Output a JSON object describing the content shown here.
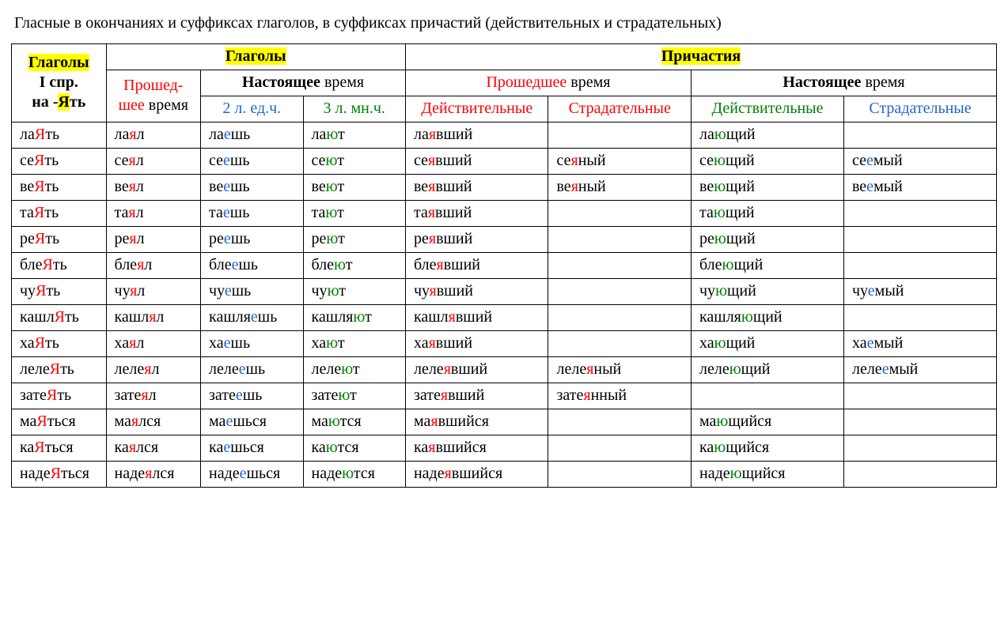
{
  "title": "Гласные в окончаниях и суффиксах глаголов, в суффиксах причастий (действительных и страдательных)",
  "headers": {
    "col0_l1": "Глаголы",
    "col0_l2": "I спр.",
    "col0_l3_pre": "на -",
    "col0_l3_hl": "Я",
    "col0_l3_post": "ть",
    "verbs_group": "Глаголы",
    "participles_group": "Причастия",
    "past_tense_l1": "Прошед-",
    "past_tense_l2": "шее",
    "past_tense_l2b": " время",
    "present_tense_b": "Настоящее",
    "present_tense_n": " время",
    "p2sg": "2 л. ед.ч.",
    "p3pl": "3 л. мн.ч.",
    "past_b": "Прошедшее",
    "past_n": " время",
    "active": "Действительные",
    "passive": "Страдательные"
  },
  "colors": {
    "highlight_bg": "#ffff00",
    "red": "#ff0000",
    "green": "#008000",
    "blue": "#1f65cc"
  },
  "rows": [
    {
      "c0": [
        [
          "ла",
          ""
        ],
        [
          "Я",
          "r"
        ],
        [
          "ть",
          ""
        ]
      ],
      "c1": [
        [
          "ла",
          ""
        ],
        [
          "я",
          "r"
        ],
        [
          "л",
          ""
        ]
      ],
      "c2": [
        [
          "ла",
          ""
        ],
        [
          "е",
          "b"
        ],
        [
          "шь",
          ""
        ]
      ],
      "c3": [
        [
          "ла",
          ""
        ],
        [
          "ю",
          "g"
        ],
        [
          "т",
          ""
        ]
      ],
      "c4": [
        [
          "ла",
          ""
        ],
        [
          "я",
          "r"
        ],
        [
          "вший",
          ""
        ]
      ],
      "c5": [],
      "c6": [
        [
          "ла",
          ""
        ],
        [
          "ю",
          "g"
        ],
        [
          "щий",
          ""
        ]
      ],
      "c7": []
    },
    {
      "c0": [
        [
          "се",
          ""
        ],
        [
          "Я",
          "r"
        ],
        [
          "ть",
          ""
        ]
      ],
      "c1": [
        [
          "се",
          ""
        ],
        [
          "я",
          "r"
        ],
        [
          "л",
          ""
        ]
      ],
      "c2": [
        [
          "се",
          ""
        ],
        [
          "е",
          "b"
        ],
        [
          "шь",
          ""
        ]
      ],
      "c3": [
        [
          "се",
          ""
        ],
        [
          "ю",
          "g"
        ],
        [
          "т",
          ""
        ]
      ],
      "c4": [
        [
          "се",
          ""
        ],
        [
          "я",
          "r"
        ],
        [
          "вший",
          ""
        ]
      ],
      "c5": [
        [
          "се",
          ""
        ],
        [
          "я",
          "r"
        ],
        [
          "ный",
          ""
        ]
      ],
      "c6": [
        [
          "се",
          ""
        ],
        [
          "ю",
          "g"
        ],
        [
          "щий",
          ""
        ]
      ],
      "c7": [
        [
          "се",
          ""
        ],
        [
          "е",
          "b"
        ],
        [
          "мый",
          ""
        ]
      ]
    },
    {
      "c0": [
        [
          "ве",
          ""
        ],
        [
          "Я",
          "r"
        ],
        [
          "ть",
          ""
        ]
      ],
      "c1": [
        [
          "ве",
          ""
        ],
        [
          "я",
          "r"
        ],
        [
          "л",
          ""
        ]
      ],
      "c2": [
        [
          "ве",
          ""
        ],
        [
          "е",
          "b"
        ],
        [
          "шь",
          ""
        ]
      ],
      "c3": [
        [
          "ве",
          ""
        ],
        [
          "ю",
          "g"
        ],
        [
          "т",
          ""
        ]
      ],
      "c4": [
        [
          "ве",
          ""
        ],
        [
          "я",
          "r"
        ],
        [
          "вший",
          ""
        ]
      ],
      "c5": [
        [
          "ве",
          ""
        ],
        [
          "я",
          "r"
        ],
        [
          "ный",
          ""
        ]
      ],
      "c6": [
        [
          "ве",
          ""
        ],
        [
          "ю",
          "g"
        ],
        [
          "щий",
          ""
        ]
      ],
      "c7": [
        [
          "ве",
          ""
        ],
        [
          "е",
          "b"
        ],
        [
          "мый",
          ""
        ]
      ]
    },
    {
      "c0": [
        [
          "та",
          ""
        ],
        [
          "Я",
          "r"
        ],
        [
          "ть",
          ""
        ]
      ],
      "c1": [
        [
          "та",
          ""
        ],
        [
          "я",
          "r"
        ],
        [
          "л",
          ""
        ]
      ],
      "c2": [
        [
          "та",
          ""
        ],
        [
          "е",
          "b"
        ],
        [
          "шь",
          ""
        ]
      ],
      "c3": [
        [
          "та",
          ""
        ],
        [
          "ю",
          "g"
        ],
        [
          "т",
          ""
        ]
      ],
      "c4": [
        [
          "та",
          ""
        ],
        [
          "я",
          "r"
        ],
        [
          "вший",
          ""
        ]
      ],
      "c5": [],
      "c6": [
        [
          "та",
          ""
        ],
        [
          "ю",
          "g"
        ],
        [
          "щий",
          ""
        ]
      ],
      "c7": []
    },
    {
      "c0": [
        [
          "ре",
          ""
        ],
        [
          "Я",
          "r"
        ],
        [
          "ть",
          ""
        ]
      ],
      "c1": [
        [
          "ре",
          ""
        ],
        [
          "я",
          "r"
        ],
        [
          "л",
          ""
        ]
      ],
      "c2": [
        [
          "ре",
          ""
        ],
        [
          "е",
          "b"
        ],
        [
          "шь",
          ""
        ]
      ],
      "c3": [
        [
          "ре",
          ""
        ],
        [
          "ю",
          "g"
        ],
        [
          "т",
          ""
        ]
      ],
      "c4": [
        [
          "ре",
          ""
        ],
        [
          "я",
          "r"
        ],
        [
          "вший",
          ""
        ]
      ],
      "c5": [],
      "c6": [
        [
          "ре",
          ""
        ],
        [
          "ю",
          "g"
        ],
        [
          "щий",
          ""
        ]
      ],
      "c7": []
    },
    {
      "c0": [
        [
          "бле",
          ""
        ],
        [
          "Я",
          "r"
        ],
        [
          "ть",
          ""
        ]
      ],
      "c1": [
        [
          "бле",
          ""
        ],
        [
          "я",
          "r"
        ],
        [
          "л",
          ""
        ]
      ],
      "c2": [
        [
          "бле",
          ""
        ],
        [
          "е",
          "b"
        ],
        [
          "шь",
          ""
        ]
      ],
      "c3": [
        [
          "бле",
          ""
        ],
        [
          "ю",
          "g"
        ],
        [
          "т",
          ""
        ]
      ],
      "c4": [
        [
          "бле",
          ""
        ],
        [
          "я",
          "r"
        ],
        [
          "вший",
          ""
        ]
      ],
      "c5": [],
      "c6": [
        [
          "бле",
          ""
        ],
        [
          "ю",
          "g"
        ],
        [
          "щий",
          ""
        ]
      ],
      "c7": []
    },
    {
      "c0": [
        [
          "чу",
          ""
        ],
        [
          "Я",
          "r"
        ],
        [
          "ть",
          ""
        ]
      ],
      "c1": [
        [
          "чу",
          ""
        ],
        [
          "я",
          "r"
        ],
        [
          "л",
          ""
        ]
      ],
      "c2": [
        [
          "чу",
          ""
        ],
        [
          "е",
          "b"
        ],
        [
          "шь",
          ""
        ]
      ],
      "c3": [
        [
          "чу",
          ""
        ],
        [
          "ю",
          "g"
        ],
        [
          "т",
          ""
        ]
      ],
      "c4": [
        [
          "чу",
          ""
        ],
        [
          "я",
          "r"
        ],
        [
          "вший",
          ""
        ]
      ],
      "c5": [],
      "c6": [
        [
          "чу",
          ""
        ],
        [
          "ю",
          "g"
        ],
        [
          "щий",
          ""
        ]
      ],
      "c7": [
        [
          "чу",
          ""
        ],
        [
          "е",
          "b"
        ],
        [
          "мый",
          ""
        ]
      ]
    },
    {
      "c0": [
        [
          "кашл",
          ""
        ],
        [
          "Я",
          "r"
        ],
        [
          "ть",
          ""
        ]
      ],
      "c1": [
        [
          "кашл",
          ""
        ],
        [
          "я",
          "r"
        ],
        [
          "л",
          ""
        ]
      ],
      "c2": [
        [
          "кашля",
          ""
        ],
        [
          "е",
          "b"
        ],
        [
          "шь",
          ""
        ]
      ],
      "c3": [
        [
          "кашля",
          ""
        ],
        [
          "ю",
          "g"
        ],
        [
          "т",
          ""
        ]
      ],
      "c4": [
        [
          "кашл",
          ""
        ],
        [
          "я",
          "r"
        ],
        [
          "вший",
          ""
        ]
      ],
      "c5": [],
      "c6": [
        [
          "кашля",
          ""
        ],
        [
          "ю",
          "g"
        ],
        [
          "щий",
          ""
        ]
      ],
      "c7": []
    },
    {
      "c0": [
        [
          "ха",
          ""
        ],
        [
          "Я",
          "r"
        ],
        [
          "ть",
          ""
        ]
      ],
      "c1": [
        [
          "ха",
          ""
        ],
        [
          "я",
          "r"
        ],
        [
          "л",
          ""
        ]
      ],
      "c2": [
        [
          "ха",
          ""
        ],
        [
          "е",
          "b"
        ],
        [
          "шь",
          ""
        ]
      ],
      "c3": [
        [
          "ха",
          ""
        ],
        [
          "ю",
          "g"
        ],
        [
          "т",
          ""
        ]
      ],
      "c4": [
        [
          "ха",
          ""
        ],
        [
          "я",
          "r"
        ],
        [
          "вший",
          ""
        ]
      ],
      "c5": [],
      "c6": [
        [
          "ха",
          ""
        ],
        [
          "ю",
          "g"
        ],
        [
          "щий",
          ""
        ]
      ],
      "c7": [
        [
          "ха",
          ""
        ],
        [
          "е",
          "b"
        ],
        [
          "мый",
          ""
        ]
      ]
    },
    {
      "c0": [
        [
          "леле",
          ""
        ],
        [
          "Я",
          "r"
        ],
        [
          "ть",
          ""
        ]
      ],
      "c1": [
        [
          "леле",
          ""
        ],
        [
          "я",
          "r"
        ],
        [
          "л",
          ""
        ]
      ],
      "c2": [
        [
          "леле",
          ""
        ],
        [
          "е",
          "b"
        ],
        [
          "шь",
          ""
        ]
      ],
      "c3": [
        [
          "леле",
          ""
        ],
        [
          "ю",
          "g"
        ],
        [
          "т",
          ""
        ]
      ],
      "c4": [
        [
          "леле",
          ""
        ],
        [
          "я",
          "r"
        ],
        [
          "вший",
          ""
        ]
      ],
      "c5": [
        [
          "леле",
          ""
        ],
        [
          "я",
          "r"
        ],
        [
          "ный",
          ""
        ]
      ],
      "c6": [
        [
          "леле",
          ""
        ],
        [
          "ю",
          "g"
        ],
        [
          "щий",
          ""
        ]
      ],
      "c7": [
        [
          "леле",
          ""
        ],
        [
          "е",
          "b"
        ],
        [
          "мый",
          ""
        ]
      ]
    },
    {
      "c0": [
        [
          "зате",
          ""
        ],
        [
          "Я",
          "r"
        ],
        [
          "ть",
          ""
        ]
      ],
      "c1": [
        [
          "зате",
          ""
        ],
        [
          "я",
          "r"
        ],
        [
          "л",
          ""
        ]
      ],
      "c2": [
        [
          "зате",
          ""
        ],
        [
          "е",
          "b"
        ],
        [
          "шь",
          ""
        ]
      ],
      "c3": [
        [
          "зате",
          ""
        ],
        [
          "ю",
          "g"
        ],
        [
          "т",
          ""
        ]
      ],
      "c4": [
        [
          "зате",
          ""
        ],
        [
          "я",
          "r"
        ],
        [
          "вший",
          ""
        ]
      ],
      "c5": [
        [
          "зате",
          ""
        ],
        [
          "я",
          "r"
        ],
        [
          "нный",
          ""
        ]
      ],
      "c6": [],
      "c7": []
    },
    {
      "c0": [
        [
          "ма",
          ""
        ],
        [
          "Я",
          "r"
        ],
        [
          "ться",
          ""
        ]
      ],
      "c1": [
        [
          "ма",
          ""
        ],
        [
          "я",
          "r"
        ],
        [
          "лся",
          ""
        ]
      ],
      "c2": [
        [
          "ма",
          ""
        ],
        [
          "е",
          "b"
        ],
        [
          "шься",
          ""
        ]
      ],
      "c3": [
        [
          "ма",
          ""
        ],
        [
          "ю",
          "g"
        ],
        [
          "тся",
          ""
        ]
      ],
      "c4": [
        [
          "ма",
          ""
        ],
        [
          "я",
          "r"
        ],
        [
          "вшийся",
          ""
        ]
      ],
      "c5": [],
      "c6": [
        [
          "ма",
          ""
        ],
        [
          "ю",
          "g"
        ],
        [
          "щийся",
          ""
        ]
      ],
      "c7": []
    },
    {
      "c0": [
        [
          "ка",
          ""
        ],
        [
          "Я",
          "r"
        ],
        [
          "ться",
          ""
        ]
      ],
      "c1": [
        [
          "ка",
          ""
        ],
        [
          "я",
          "r"
        ],
        [
          "лся",
          ""
        ]
      ],
      "c2": [
        [
          "ка",
          ""
        ],
        [
          "е",
          "b"
        ],
        [
          "шься",
          ""
        ]
      ],
      "c3": [
        [
          "ка",
          ""
        ],
        [
          "ю",
          "g"
        ],
        [
          "тся",
          ""
        ]
      ],
      "c4": [
        [
          "ка",
          ""
        ],
        [
          "я",
          "r"
        ],
        [
          "вшийся",
          ""
        ]
      ],
      "c5": [],
      "c6": [
        [
          "ка",
          ""
        ],
        [
          "ю",
          "g"
        ],
        [
          "щийся",
          ""
        ]
      ],
      "c7": []
    },
    {
      "c0": [
        [
          "наде",
          ""
        ],
        [
          "Я",
          "r"
        ],
        [
          "ться",
          ""
        ]
      ],
      "c1": [
        [
          "наде",
          ""
        ],
        [
          "я",
          "r"
        ],
        [
          "лся",
          ""
        ]
      ],
      "c2": [
        [
          "наде",
          ""
        ],
        [
          "е",
          "b"
        ],
        [
          "шься",
          ""
        ]
      ],
      "c3": [
        [
          "наде",
          ""
        ],
        [
          "ю",
          "g"
        ],
        [
          "тся",
          ""
        ]
      ],
      "c4": [
        [
          "наде",
          ""
        ],
        [
          "я",
          "r"
        ],
        [
          "вшийся",
          ""
        ]
      ],
      "c5": [],
      "c6": [
        [
          "наде",
          ""
        ],
        [
          "ю",
          "g"
        ],
        [
          "щийся",
          ""
        ]
      ],
      "c7": []
    }
  ]
}
